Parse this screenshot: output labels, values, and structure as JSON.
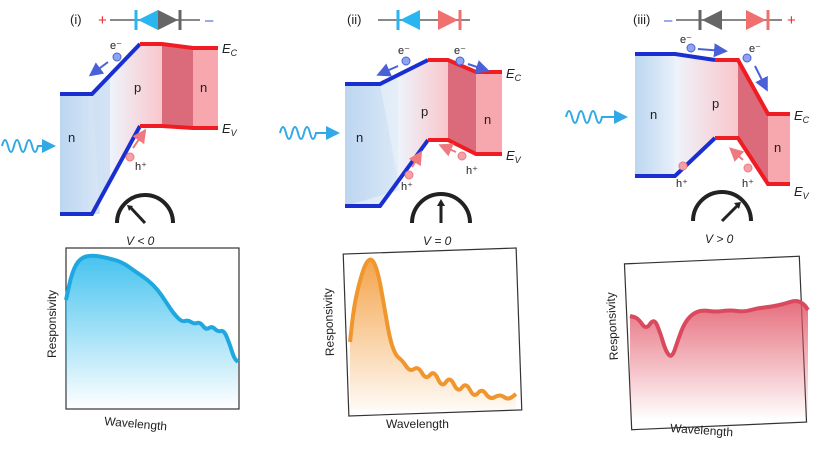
{
  "panels": [
    {
      "id": "(i)",
      "polarity_left": "+",
      "polarity_right": "–",
      "region_n1": "n",
      "region_p": "p",
      "region_n2": "n",
      "electron": "e⁻",
      "hole": "h⁺",
      "ec": "E",
      "ec_sub": "C",
      "ev": "E",
      "ev_sub": "V",
      "bias": "V < 0",
      "ylabel": "Responsivity",
      "xlabel": "Wavelength",
      "accent": "#29a8e0"
    },
    {
      "id": "(ii)",
      "region_n1": "n",
      "region_p": "p",
      "region_n2": "n",
      "electron1": "e⁻",
      "electron2": "e⁻",
      "hole1": "h⁺",
      "hole2": "h⁺",
      "ec": "E",
      "ec_sub": "C",
      "ev": "E",
      "ev_sub": "V",
      "bias": "V = 0",
      "ylabel": "Responsivity",
      "xlabel": "Wavelength",
      "accent": "#f0962e"
    },
    {
      "id": "(iii)",
      "polarity_left": "–",
      "polarity_right": "+",
      "region_n1": "n",
      "region_p": "p",
      "region_n2": "n",
      "electron1": "e⁻",
      "electron2": "e⁻",
      "hole1": "h⁺",
      "hole2": "h⁺",
      "ec": "E",
      "ec_sub": "C",
      "ev": "E",
      "ev_sub": "V",
      "bias": "V > 0",
      "ylabel": "Responsivity",
      "xlabel": "Wavelength",
      "accent": "#d94a5e"
    }
  ],
  "colors": {
    "band_blue": "#1a2fd0",
    "band_red": "#f01c24",
    "diode_blue": "#29b6f0",
    "diode_grey": "#666666",
    "diode_red": "#f07070",
    "light": "#33a8e6"
  }
}
